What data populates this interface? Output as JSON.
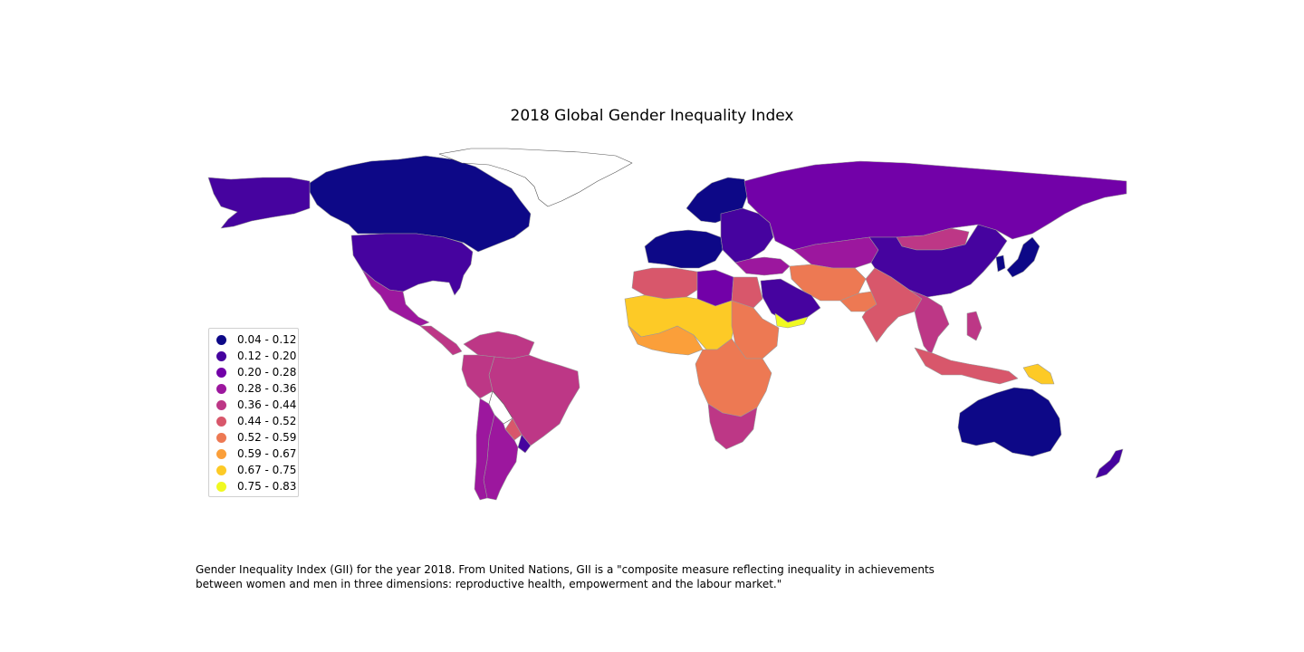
{
  "title": "2018 Global Gender Inequality Index",
  "legend": {
    "items": [
      {
        "label": "0.04 - 0.12",
        "color": "#0d0887"
      },
      {
        "label": "0.12 - 0.20",
        "color": "#46039f"
      },
      {
        "label": "0.20 - 0.28",
        "color": "#7201a8"
      },
      {
        "label": "0.28 - 0.36",
        "color": "#9c179e"
      },
      {
        "label": "0.36 - 0.44",
        "color": "#bd3786"
      },
      {
        "label": "0.44 - 0.52",
        "color": "#d8576b"
      },
      {
        "label": "0.52 - 0.59",
        "color": "#ed7953"
      },
      {
        "label": "0.59 - 0.67",
        "color": "#fb9f3a"
      },
      {
        "label": "0.67 - 0.75",
        "color": "#fdca26"
      },
      {
        "label": "0.75 - 0.83",
        "color": "#f0f921"
      }
    ]
  },
  "caption": {
    "line1": "Gender Inequality Index (GII) for the year 2018. From United Nations, GII is a \"composite measure reflecting inequality in achievements",
    "line2": "between women and men in three dimensions: reproductive health, empowerment and the labour market.\""
  },
  "no_data_color": "#ffffff",
  "border_color": "#9a9a9a",
  "regions": [
    {
      "name": "Canada",
      "class": 0
    },
    {
      "name": "United States",
      "class": 1
    },
    {
      "name": "Alaska",
      "class": 1
    },
    {
      "name": "Mexico",
      "class": 3
    },
    {
      "name": "Central America",
      "class": 4
    },
    {
      "name": "Greenland",
      "class": null
    },
    {
      "name": "Northern South America",
      "class": 4
    },
    {
      "name": "Brazil",
      "class": 4
    },
    {
      "name": "Peru",
      "class": 4
    },
    {
      "name": "Bolivia",
      "class": null
    },
    {
      "name": "Paraguay",
      "class": 5
    },
    {
      "name": "Argentina",
      "class": 3
    },
    {
      "name": "Chile",
      "class": 3
    },
    {
      "name": "Uruguay",
      "class": 1
    },
    {
      "name": "Western Europe",
      "class": 0
    },
    {
      "name": "Scandinavia",
      "class": 0
    },
    {
      "name": "Eastern Europe",
      "class": 1
    },
    {
      "name": "Russia",
      "class": 2
    },
    {
      "name": "Central Asia",
      "class": 3
    },
    {
      "name": "Mongolia",
      "class": 4
    },
    {
      "name": "China",
      "class": 1
    },
    {
      "name": "Japan",
      "class": 0
    },
    {
      "name": "Korea",
      "class": 0
    },
    {
      "name": "Turkey",
      "class": 3
    },
    {
      "name": "Iran Afghanistan",
      "class": 6
    },
    {
      "name": "Pakistan",
      "class": 6
    },
    {
      "name": "India",
      "class": 5
    },
    {
      "name": "Saudi Arabia",
      "class": 1
    },
    {
      "name": "Yemen",
      "class": 9
    },
    {
      "name": "North Africa West",
      "class": 5
    },
    {
      "name": "Libya",
      "class": 2
    },
    {
      "name": "Egypt",
      "class": 5
    },
    {
      "name": "Sahel",
      "class": 8
    },
    {
      "name": "Sudan Ethiopia",
      "class": 6
    },
    {
      "name": "West Africa",
      "class": 7
    },
    {
      "name": "Central Africa",
      "class": 6
    },
    {
      "name": "Southern Africa",
      "class": 4
    },
    {
      "name": "Southeast Asia",
      "class": 4
    },
    {
      "name": "Indonesia",
      "class": 5
    },
    {
      "name": "Papua New Guinea",
      "class": 8
    },
    {
      "name": "Philippines",
      "class": 4
    },
    {
      "name": "Australia",
      "class": 0
    },
    {
      "name": "New Zealand",
      "class": 1
    }
  ]
}
